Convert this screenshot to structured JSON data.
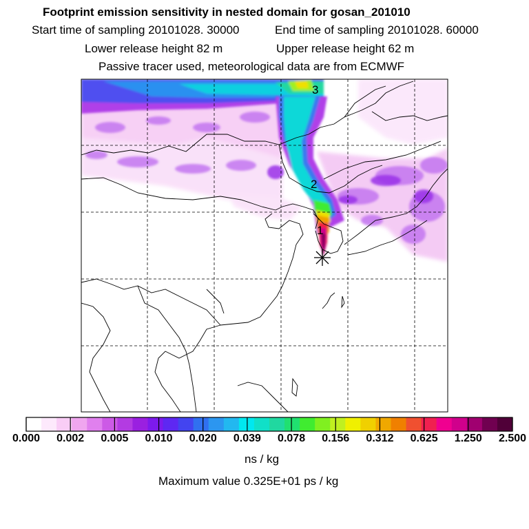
{
  "title": {
    "line1": "Footprint emission sensitivity in nested domain for gosan_201010",
    "start_sampling": "Start time of sampling 20101028. 30000",
    "end_sampling": "End time of sampling 20101028. 60000",
    "lower_release": "Lower release height   82 m",
    "upper_release": "Upper release height   62 m",
    "line4": "Passive tracer used, meteorological data are from ECMWF"
  },
  "map": {
    "trajectory_labels": [
      "3",
      "2",
      "1"
    ],
    "release_marker": "release-site-star"
  },
  "colorbar": {
    "unit": "ns / kg",
    "tick_labels": [
      "0.000",
      "0.002",
      "0.005",
      "0.010",
      "0.020",
      "0.039",
      "0.078",
      "0.156",
      "0.312",
      "0.625",
      "1.250",
      "2.500"
    ],
    "colors": [
      "#ffffff",
      "#fde9fc",
      "#f9cdf6",
      "#f0a6ef",
      "#e080ee",
      "#cc5ae6",
      "#b33be2",
      "#9a20e0",
      "#7d1aec",
      "#5e28f2",
      "#4344f0",
      "#3070f0",
      "#2c96f0",
      "#22b8f0",
      "#00e8f0",
      "#10e0c8",
      "#20d8a0",
      "#20e070",
      "#40ec30",
      "#80f020",
      "#c0f020",
      "#f0f000",
      "#f0d000",
      "#f0a800",
      "#f08000",
      "#f05030",
      "#f02050",
      "#f00090",
      "#d0008c",
      "#a00070",
      "#700050",
      "#500038"
    ]
  },
  "footer": {
    "max_value": "Maximum value  0.325E+01 ps / kg"
  }
}
